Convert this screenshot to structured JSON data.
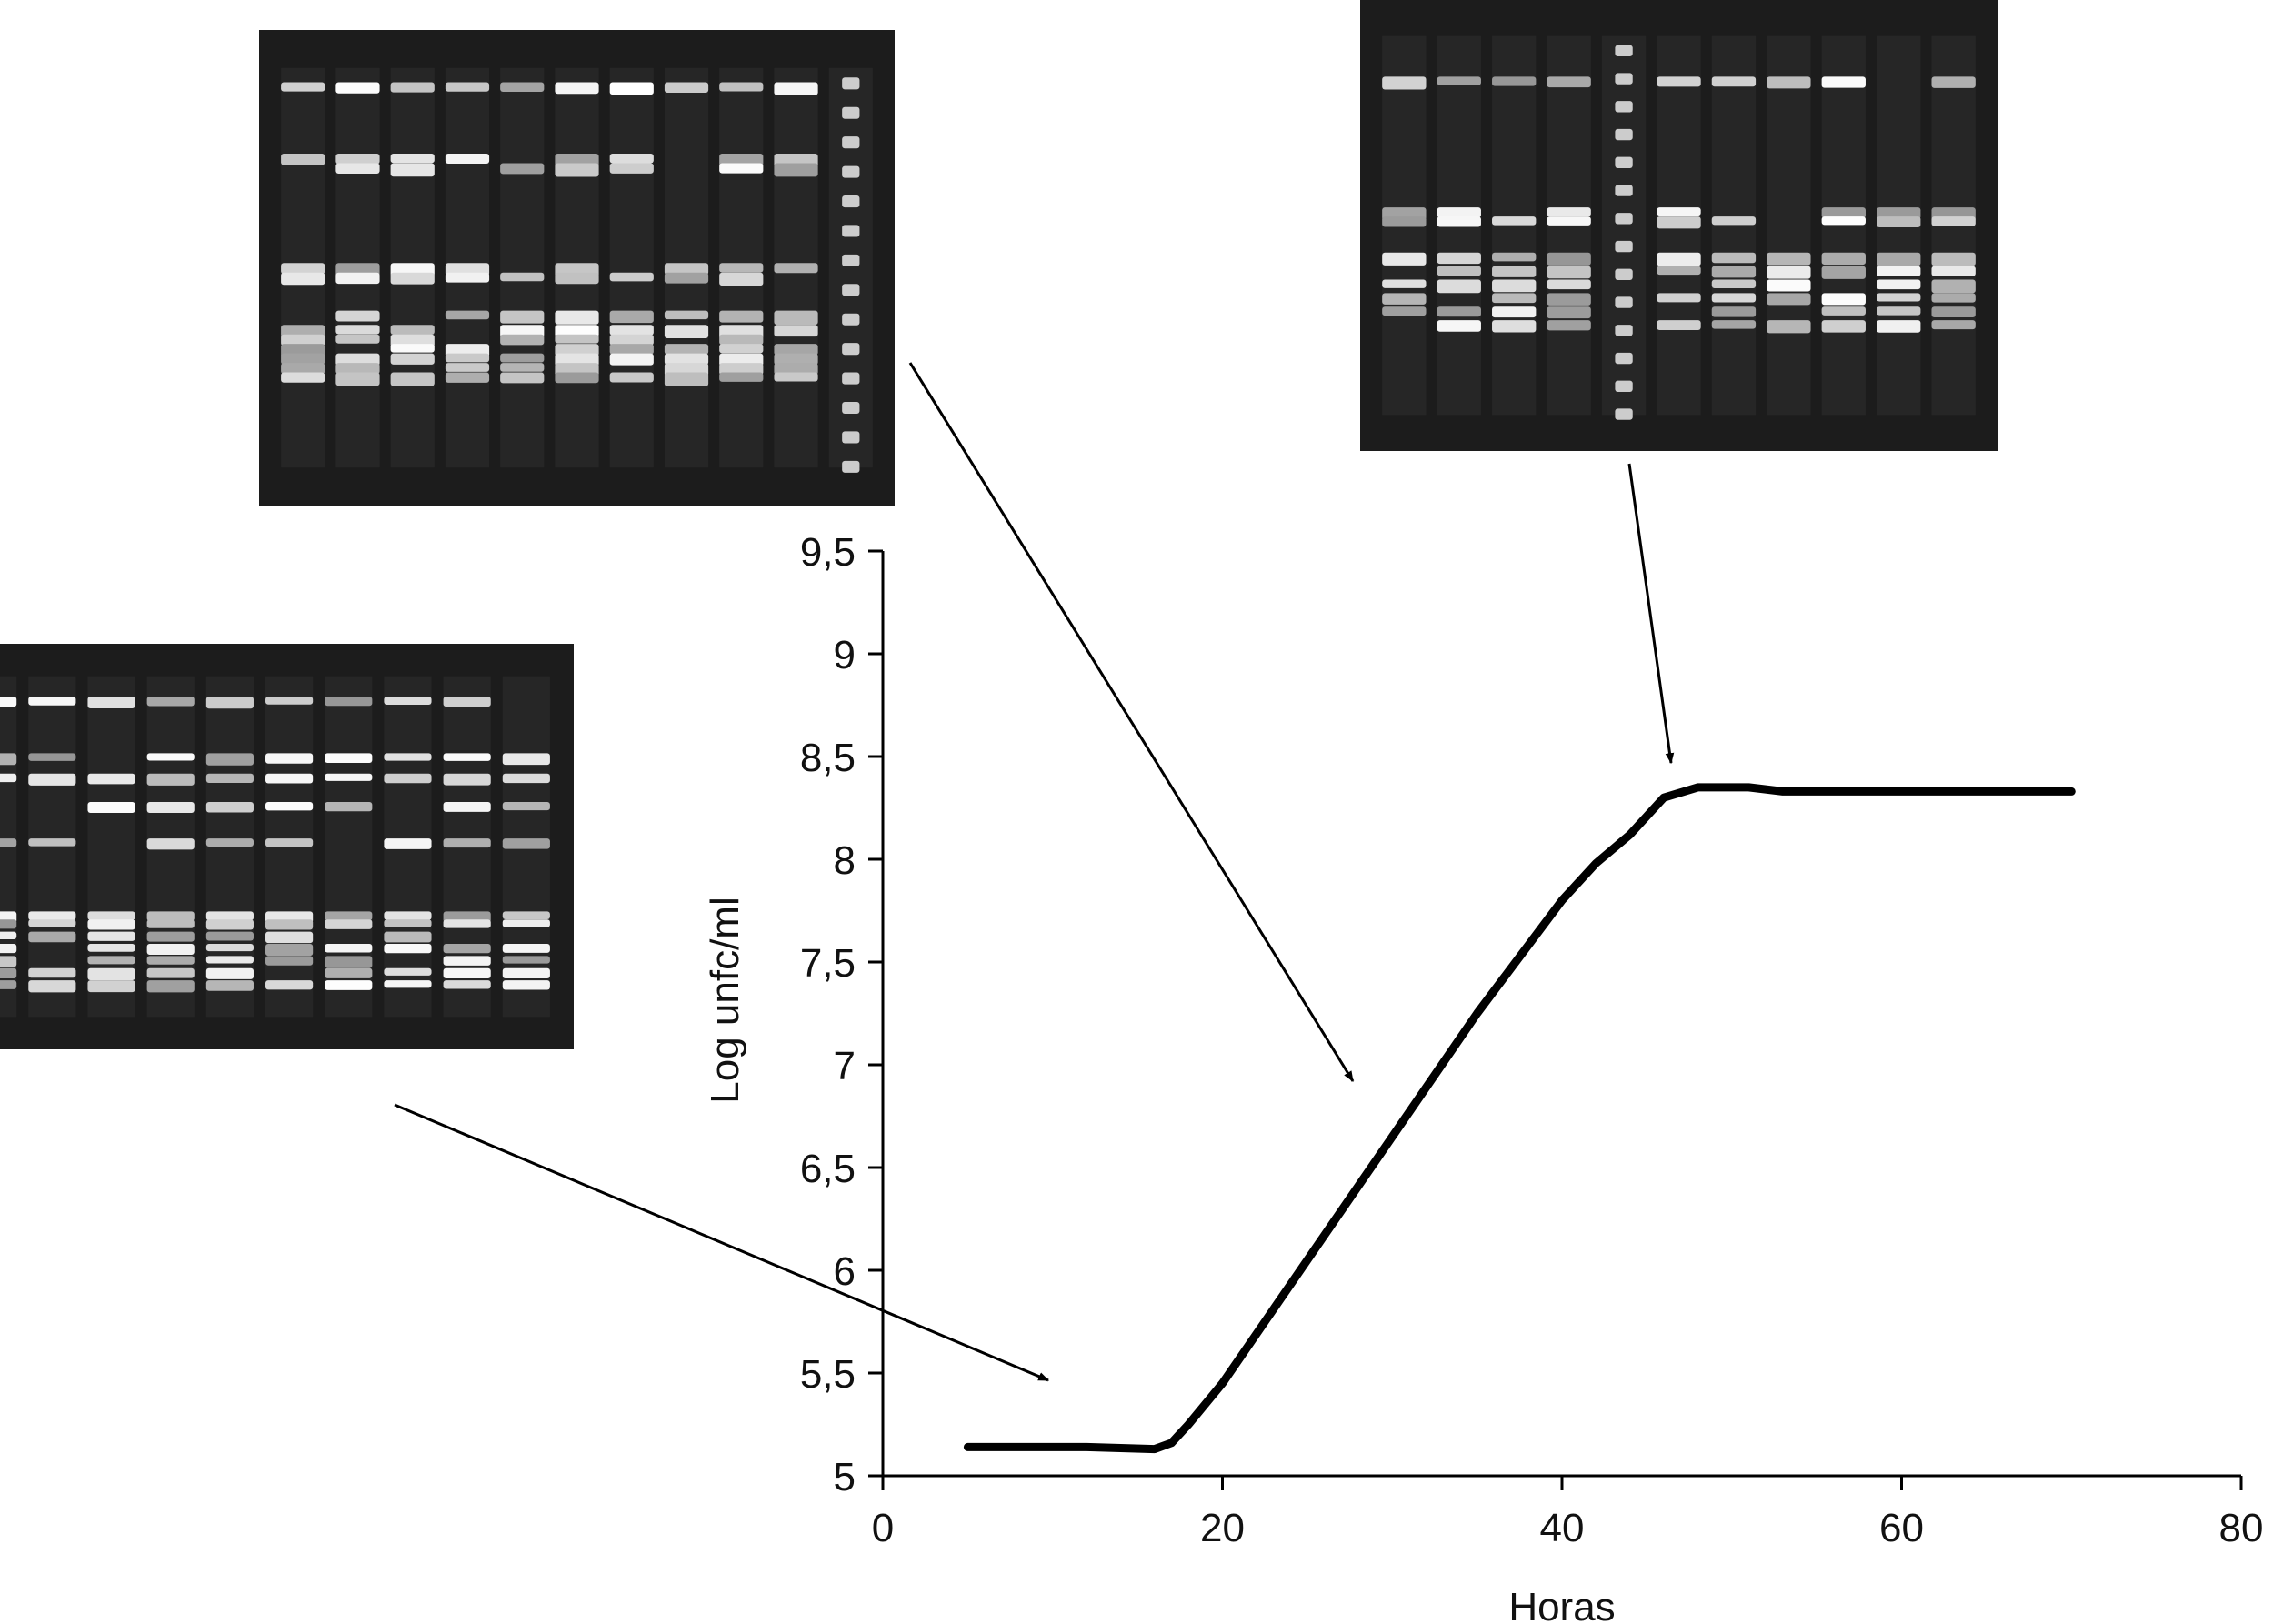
{
  "chart_data": {
    "type": "line",
    "title": "",
    "xlabel": "Horas",
    "ylabel": "Log unfc/ml",
    "xlim": [
      0,
      80
    ],
    "ylim": [
      5,
      9.5
    ],
    "x_ticks": [
      "0",
      "20",
      "40",
      "60",
      "80"
    ],
    "y_ticks": [
      "5",
      "5,5",
      "6",
      "6,5",
      "7",
      "7,5",
      "8",
      "8,5",
      "9",
      "9,5"
    ],
    "grid": false,
    "series": [
      {
        "x": [
          5,
          12,
          16,
          17,
          18,
          20,
          25,
          30,
          35,
          40,
          42,
          44,
          46,
          48,
          51,
          53,
          70
        ],
        "y": [
          5.14,
          5.14,
          5.13,
          5.16,
          5.25,
          5.45,
          6.05,
          6.65,
          7.25,
          7.8,
          7.98,
          8.12,
          8.3,
          8.35,
          8.35,
          8.33,
          8.33
        ],
        "color": "#000000"
      }
    ],
    "annotations": [
      {
        "type": "gel-image-arrow",
        "points_to": {
          "x": 10,
          "y": 5.5
        }
      },
      {
        "type": "gel-image-arrow",
        "points_to": {
          "x": 28,
          "y": 7.1
        }
      },
      {
        "type": "gel-image-arrow",
        "points_to": {
          "x": 47,
          "y": 8.45
        }
      }
    ]
  }
}
